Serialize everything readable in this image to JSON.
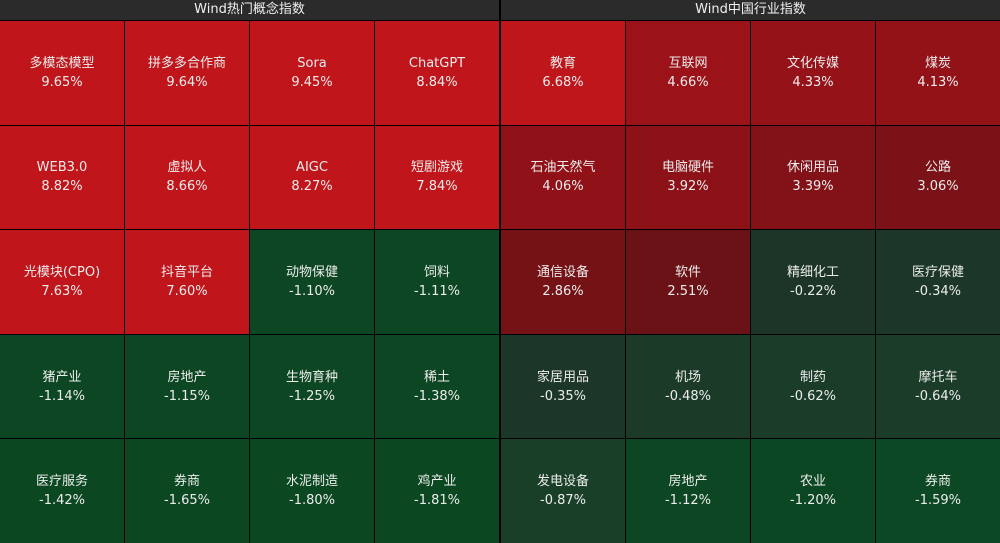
{
  "panels": [
    {
      "title": "Wind热门概念指数",
      "cells": [
        {
          "name": "多模态模型",
          "change": "9.65%",
          "color": "#c0161b"
        },
        {
          "name": "拼多多合作商",
          "change": "9.64%",
          "color": "#c0161b"
        },
        {
          "name": "Sora",
          "change": "9.45%",
          "color": "#c0161b"
        },
        {
          "name": "ChatGPT",
          "change": "8.84%",
          "color": "#c0161b"
        },
        {
          "name": "WEB3.0",
          "change": "8.82%",
          "color": "#c0161b"
        },
        {
          "name": "虚拟人",
          "change": "8.66%",
          "color": "#c0161b"
        },
        {
          "name": "AIGC",
          "change": "8.27%",
          "color": "#c0161b"
        },
        {
          "name": "短剧游戏",
          "change": "7.84%",
          "color": "#c0161b"
        },
        {
          "name": "光模块(CPO)",
          "change": "7.63%",
          "color": "#c0161b"
        },
        {
          "name": "抖音平台",
          "change": "7.60%",
          "color": "#c0161b"
        },
        {
          "name": "动物保健",
          "change": "-1.10%",
          "color": "#0c4622"
        },
        {
          "name": "饲料",
          "change": "-1.11%",
          "color": "#0c4622"
        },
        {
          "name": "猪产业",
          "change": "-1.14%",
          "color": "#0c4622"
        },
        {
          "name": "房地产",
          "change": "-1.15%",
          "color": "#0c4622"
        },
        {
          "name": "生物育种",
          "change": "-1.25%",
          "color": "#0c4622"
        },
        {
          "name": "稀土",
          "change": "-1.38%",
          "color": "#0c4622"
        },
        {
          "name": "医疗服务",
          "change": "-1.42%",
          "color": "#0b4822"
        },
        {
          "name": "券商",
          "change": "-1.65%",
          "color": "#0b4822"
        },
        {
          "name": "水泥制造",
          "change": "-1.80%",
          "color": "#0b4822"
        },
        {
          "name": "鸡产业",
          "change": "-1.81%",
          "color": "#0b4822"
        }
      ]
    },
    {
      "title": "Wind中国行业指数",
      "cells": [
        {
          "name": "教育",
          "change": "6.68%",
          "color": "#bf161c"
        },
        {
          "name": "互联网",
          "change": "4.66%",
          "color": "#9b1219"
        },
        {
          "name": "文化传媒",
          "change": "4.33%",
          "color": "#961219"
        },
        {
          "name": "煤炭",
          "change": "4.13%",
          "color": "#921218"
        },
        {
          "name": "石油天然气",
          "change": "4.06%",
          "color": "#901218"
        },
        {
          "name": "电脑硬件",
          "change": "3.92%",
          "color": "#8c1218"
        },
        {
          "name": "休闲用品",
          "change": "3.39%",
          "color": "#821218"
        },
        {
          "name": "公路",
          "change": "3.06%",
          "color": "#7a1217"
        },
        {
          "name": "通信设备",
          "change": "2.86%",
          "color": "#741216"
        },
        {
          "name": "软件",
          "change": "2.51%",
          "color": "#6a1216"
        },
        {
          "name": "精细化工",
          "change": "-0.22%",
          "color": "#1c3526"
        },
        {
          "name": "医疗保健",
          "change": "-0.34%",
          "color": "#1c3727"
        },
        {
          "name": "家居用品",
          "change": "-0.35%",
          "color": "#1c3727"
        },
        {
          "name": "机场",
          "change": "-0.48%",
          "color": "#1b3a28"
        },
        {
          "name": "制药",
          "change": "-0.62%",
          "color": "#1a3c28"
        },
        {
          "name": "摩托车",
          "change": "-0.64%",
          "color": "#1a3c28"
        },
        {
          "name": "发电设备",
          "change": "-0.87%",
          "color": "#193f28"
        },
        {
          "name": "房地产",
          "change": "-1.12%",
          "color": "#0d4623"
        },
        {
          "name": "农业",
          "change": "-1.20%",
          "color": "#0c4723"
        },
        {
          "name": "券商",
          "change": "-1.59%",
          "color": "#0b4823"
        }
      ]
    }
  ]
}
